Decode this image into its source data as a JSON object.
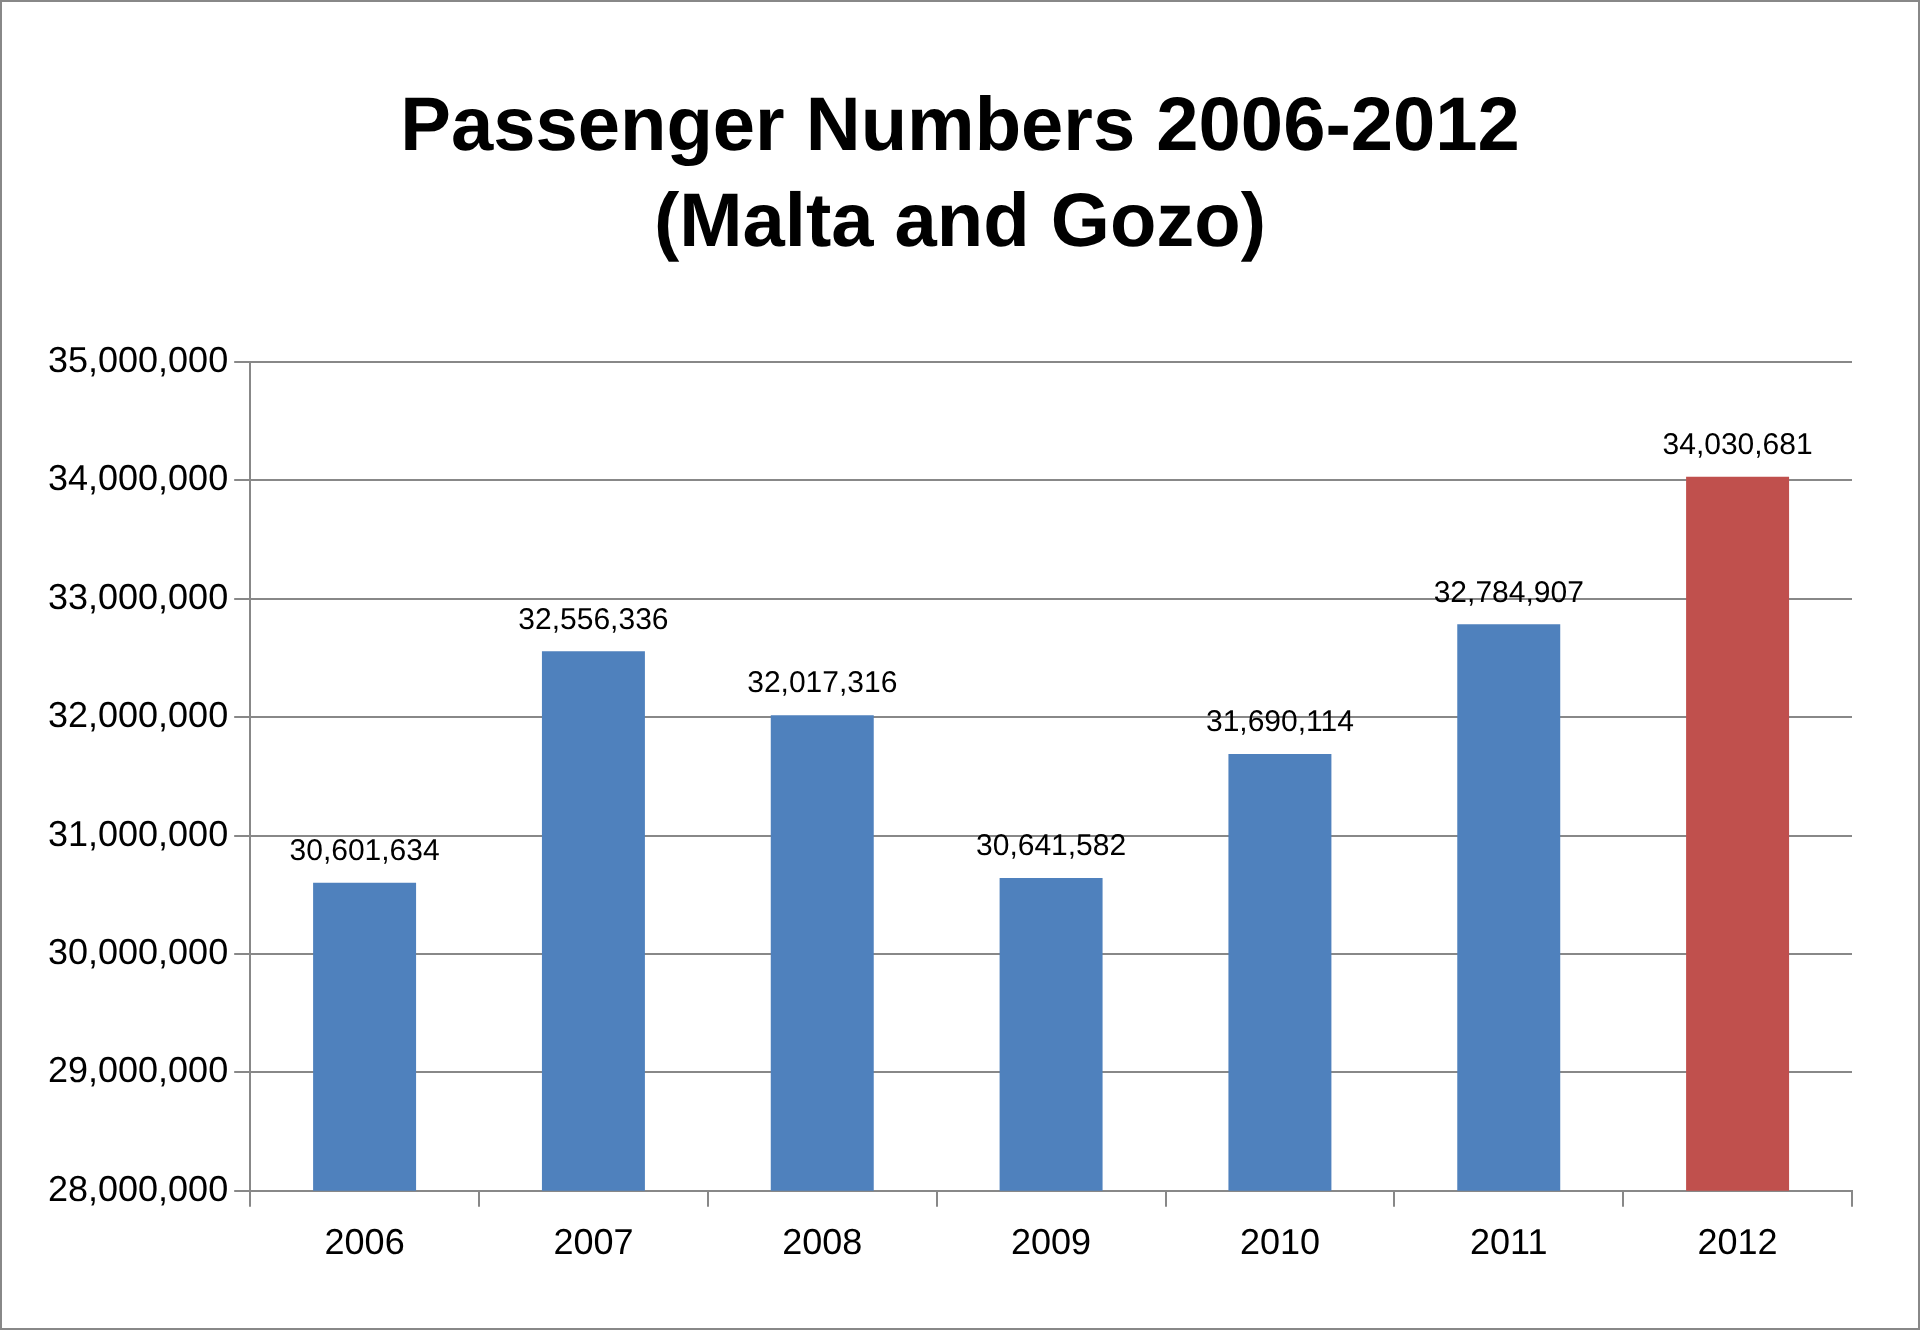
{
  "chart_data": {
    "type": "bar",
    "title": "Passenger Numbers 2006-2012 (Malta and Gozo)",
    "categories": [
      "2006",
      "2007",
      "2008",
      "2009",
      "2010",
      "2011",
      "2012"
    ],
    "values": [
      30601634,
      32556336,
      32017316,
      30641582,
      31690114,
      32784907,
      34030681
    ],
    "value_labels": [
      "30,601,634",
      "32,556,336",
      "32,017,316",
      "30,641,582",
      "31,690,114",
      "32,784,907",
      "34,030,681"
    ],
    "colors": [
      "#4f81bd",
      "#4f81bd",
      "#4f81bd",
      "#4f81bd",
      "#4f81bd",
      "#4f81bd",
      "#c0504d"
    ],
    "ylim": [
      28000000,
      35000000
    ],
    "yticks": [
      {
        "value": 28000000,
        "label": "28,000,000"
      },
      {
        "value": 29000000,
        "label": "29,000,000"
      },
      {
        "value": 30000000,
        "label": "30,000,000"
      },
      {
        "value": 31000000,
        "label": "31,000,000"
      },
      {
        "value": 32000000,
        "label": "32,000,000"
      },
      {
        "value": 33000000,
        "label": "33,000,000"
      },
      {
        "value": 34000000,
        "label": "34,000,000"
      },
      {
        "value": 35000000,
        "label": "35,000,000"
      }
    ],
    "grid": "y"
  }
}
